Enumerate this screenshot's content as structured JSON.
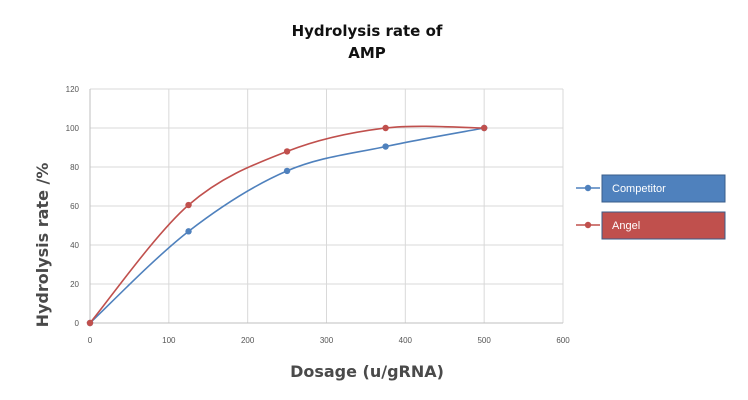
{
  "chart_data": {
    "type": "line",
    "title": [
      "Hydrolysis rate of",
      "AMP"
    ],
    "xlabel": "Dosage (u/gRNA)",
    "ylabel": "Hydrolysis rate /%",
    "xlim": [
      0,
      600
    ],
    "ylim": [
      0,
      120
    ],
    "xticks": [
      0,
      100,
      200,
      300,
      400,
      500,
      600
    ],
    "yticks": [
      0,
      20,
      40,
      60,
      80,
      100,
      120
    ],
    "grid": true,
    "legend_position": "right",
    "series": [
      {
        "name": "Competitor",
        "color": "#4f81bd",
        "x": [
          0,
          125,
          250,
          375,
          500
        ],
        "y": [
          0,
          47,
          78,
          90.5,
          100
        ]
      },
      {
        "name": "Angel",
        "color": "#c0504d",
        "x": [
          0,
          125,
          250,
          375,
          500
        ],
        "y": [
          0,
          60.5,
          88,
          100,
          100
        ]
      }
    ]
  }
}
